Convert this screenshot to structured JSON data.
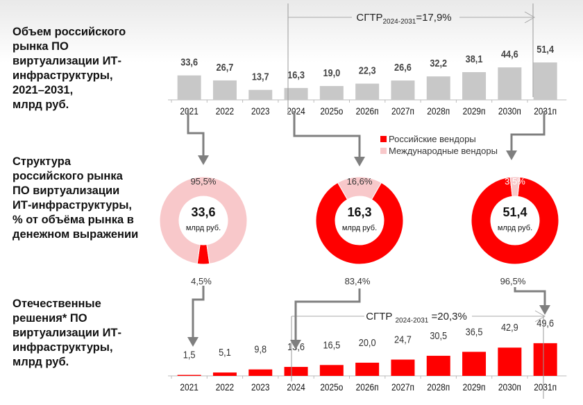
{
  "titles": {
    "market": "Объем российского\nрынка ПО\nвиртуализации ИТ-\nинфраструктуры,\n2021–2031,\nмлрд руб.",
    "structure": "Структура\nроссийского рынка\nПО виртуализации\nИТ-инфраструктуры,\n% от объёма рынка в\nденежном выражении",
    "domestic": "Отечественные\nрешения*  ПО\nвиртуализации ИТ-\nинфраструктуры,\nмлрд руб."
  },
  "chart_data": [
    {
      "type": "bar",
      "title": "Объем российского рынка ПО виртуализации ИТ-инфраструктуры, 2021–2031, млрд руб.",
      "categories": [
        "2021",
        "2022",
        "2023",
        "2024",
        "2025о",
        "2026п",
        "2027п",
        "2028п",
        "2029п",
        "2030п",
        "2031п"
      ],
      "values": [
        33.6,
        26.7,
        13.7,
        16.3,
        19.0,
        22.3,
        26.6,
        32.2,
        38.1,
        44.6,
        51.4
      ],
      "labels": [
        "33,6",
        "26,7",
        "13,7",
        "16,3",
        "19,0",
        "22,3",
        "26,6",
        "32,2",
        "38,1",
        "44,6",
        "51,4"
      ],
      "cagr": {
        "prefix": "СГТР",
        "sub": "2024-2031",
        "value": "=17,9%"
      },
      "color": "#c8c8c8"
    },
    {
      "type": "pie",
      "title": "Структура российского рынка ПО виртуализации ИТ-инфраструктуры, % от объёма рынка в денежном выражении",
      "legend": [
        "Российские вендоры",
        "Международные вендоры"
      ],
      "colors": [
        "#ff0000",
        "#f8c8ca"
      ],
      "donuts": [
        {
          "year": "2021",
          "total": "33,6",
          "unit": "млрд руб.",
          "russian": 4.5,
          "international": 95.5,
          "russian_label": "4,5%",
          "international_label": "95,5%"
        },
        {
          "year": "2024",
          "total": "16,3",
          "unit": "млрд руб.",
          "russian": 83.4,
          "international": 16.6,
          "russian_label": "83,4%",
          "international_label": "16,6%"
        },
        {
          "year": "2031",
          "total": "51,4",
          "unit": "млрд руб.",
          "russian": 96.5,
          "international": 3.5,
          "russian_label": "96,5%",
          "international_label": "3,5%"
        }
      ]
    },
    {
      "type": "bar",
      "title": "Отечественные решения ПО виртуализации ИТ-инфраструктуры, млрд руб.",
      "categories": [
        "2021",
        "2022",
        "2023",
        "2024",
        "2025о",
        "2026п",
        "2027п",
        "2028п",
        "2029п",
        "2030п",
        "2031п"
      ],
      "values": [
        1.5,
        5.1,
        9.8,
        13.6,
        16.5,
        20.0,
        24.7,
        30.5,
        36.5,
        42.9,
        49.6
      ],
      "labels": [
        "1,5",
        "5,1",
        "9,8",
        "13,6",
        "16,5",
        "20,0",
        "24,7",
        "30,5",
        "36,5",
        "42,9",
        "49,6"
      ],
      "cagr": {
        "prefix": "СГТР ",
        "sub": "2024-2031",
        "value": " =20,3%"
      },
      "color": "#ff0000"
    }
  ]
}
